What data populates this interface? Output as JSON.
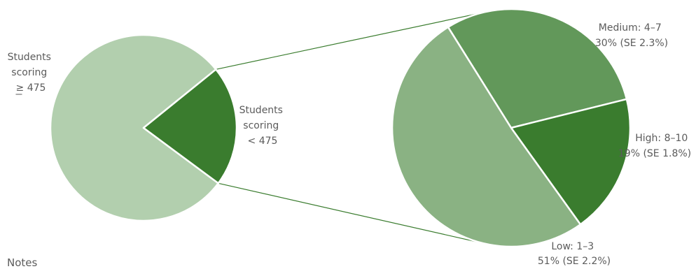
{
  "notes_label": "Notes",
  "chart_data": [
    {
      "type": "pie",
      "slices": [
        {
          "label_lines": [
            "Students",
            "scoring",
            "≥ 475"
          ],
          "value": 79,
          "color": "#b2cfae"
        },
        {
          "label_lines": [
            "Students",
            "scoring",
            "< 475"
          ],
          "value": 21,
          "color": "#3a7c2e"
        }
      ],
      "exploded_slice": 1
    },
    {
      "type": "pie",
      "slices": [
        {
          "label_lines": [
            "Medium: 4–7",
            "30% (SE 2.3%)"
          ],
          "value": 30,
          "color": "#62985a"
        },
        {
          "label_lines": [
            "High: 8–10",
            "19% (SE 1.8%)"
          ],
          "value": 19,
          "color": "#3a7c2e"
        },
        {
          "label_lines": [
            "Low: 1–3",
            "51% (SE 2.2%)"
          ],
          "value": 51,
          "color": "#8ab283"
        }
      ]
    }
  ],
  "connector_color": "#3a7c2e"
}
